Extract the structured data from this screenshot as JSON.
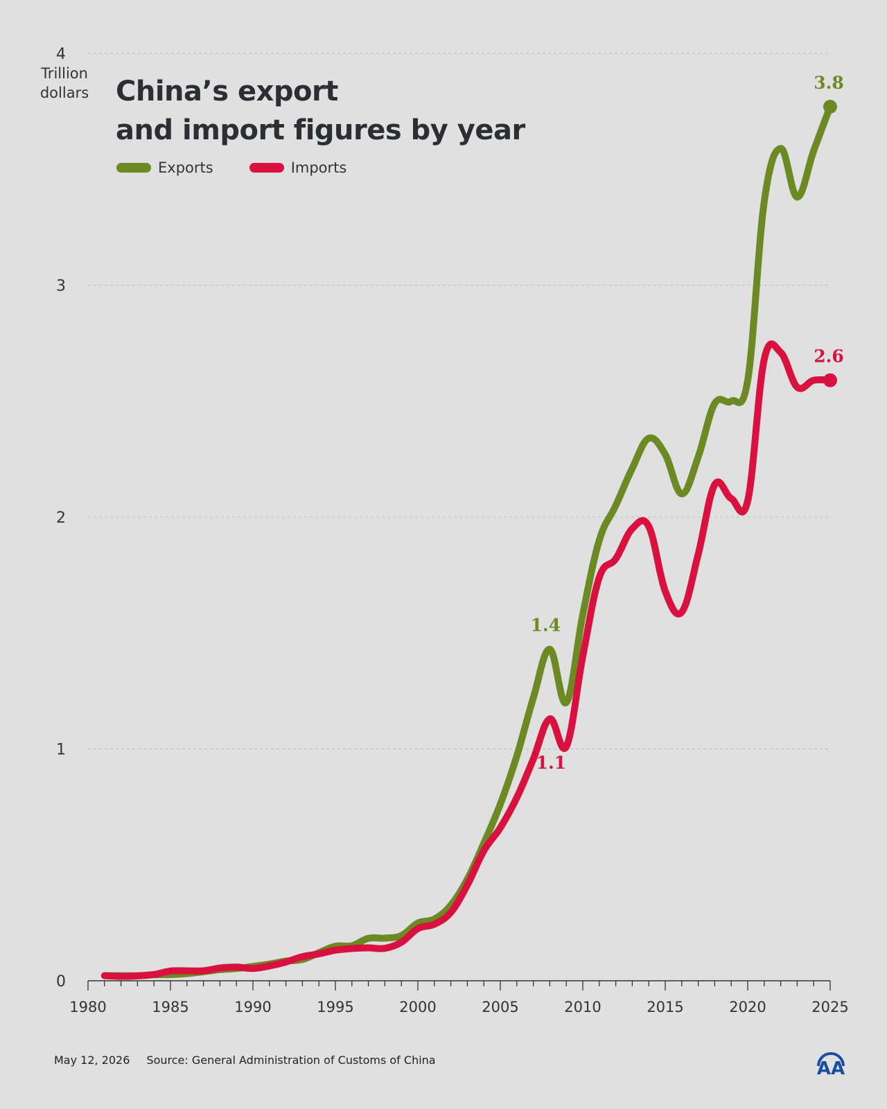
{
  "header": {
    "title_line1": "China’s export",
    "title_line2": "and import figures by year",
    "unit_line1": "Trillion",
    "unit_line2": "dollars"
  },
  "legend": {
    "exports": "Exports",
    "imports": "Imports"
  },
  "footer": {
    "date": "May 12, 2026",
    "source": "Source: General Administration of Customs of China"
  },
  "colors": {
    "exports": "#6b8a23",
    "imports": "#d8113f",
    "background": "#e0e0e0",
    "logo": "#1a4fa0"
  },
  "logo": {
    "icon": "aa-agency-logo-icon",
    "text": "AA"
  },
  "chart_data": {
    "type": "line",
    "title": "China’s export and import figures by year",
    "ylabel": "Trillion dollars",
    "xlabel": "",
    "xlim": [
      1980,
      2025
    ],
    "ylim": [
      0,
      4
    ],
    "yticks": [
      0,
      1,
      2,
      3,
      4
    ],
    "xticks": [
      1980,
      1985,
      1990,
      1995,
      2000,
      2005,
      2010,
      2015,
      2020,
      2025
    ],
    "grid": "horizontal dashed",
    "legend_position": "top-left",
    "x": [
      1981,
      1982,
      1983,
      1984,
      1985,
      1986,
      1987,
      1988,
      1989,
      1990,
      1991,
      1992,
      1993,
      1994,
      1995,
      1996,
      1997,
      1998,
      1999,
      2000,
      2001,
      2002,
      2003,
      2004,
      2005,
      2006,
      2007,
      2008,
      2009,
      2010,
      2011,
      2012,
      2013,
      2014,
      2015,
      2016,
      2017,
      2018,
      2019,
      2020,
      2021,
      2022,
      2023,
      2024,
      2025
    ],
    "series": [
      {
        "name": "Exports",
        "values": [
          0.022,
          0.022,
          0.022,
          0.026,
          0.027,
          0.031,
          0.039,
          0.048,
          0.053,
          0.062,
          0.072,
          0.085,
          0.092,
          0.121,
          0.149,
          0.151,
          0.183,
          0.184,
          0.195,
          0.249,
          0.266,
          0.326,
          0.438,
          0.593,
          0.762,
          0.969,
          1.22,
          1.43,
          1.2,
          1.58,
          1.9,
          2.05,
          2.21,
          2.34,
          2.27,
          2.1,
          2.26,
          2.49,
          2.5,
          2.59,
          3.36,
          3.59,
          3.38,
          3.58,
          3.77
        ]
      },
      {
        "name": "Imports",
        "values": [
          0.022,
          0.019,
          0.021,
          0.027,
          0.042,
          0.043,
          0.043,
          0.055,
          0.059,
          0.053,
          0.064,
          0.081,
          0.104,
          0.116,
          0.132,
          0.139,
          0.142,
          0.14,
          0.166,
          0.225,
          0.244,
          0.295,
          0.413,
          0.561,
          0.66,
          0.79,
          0.956,
          1.13,
          1.01,
          1.4,
          1.74,
          1.82,
          1.95,
          1.96,
          1.68,
          1.59,
          1.84,
          2.14,
          2.08,
          2.07,
          2.68,
          2.71,
          2.56,
          2.59,
          2.59
        ]
      }
    ],
    "annotations": [
      {
        "series": "Exports",
        "x": 2008,
        "label": "1.4"
      },
      {
        "series": "Imports",
        "x": 2008,
        "label": "1.1"
      },
      {
        "series": "Exports",
        "x": 2025,
        "label": "3.8"
      },
      {
        "series": "Imports",
        "x": 2025,
        "label": "2.6"
      }
    ]
  }
}
